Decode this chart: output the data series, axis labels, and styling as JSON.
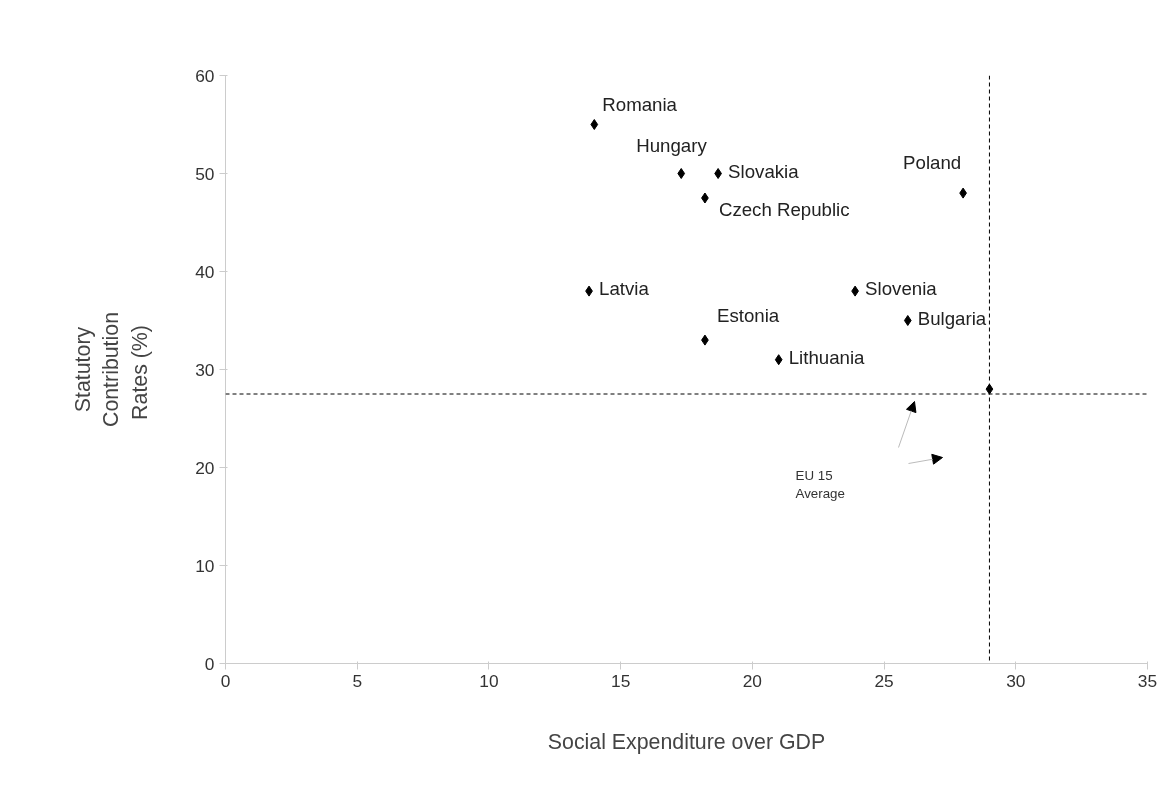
{
  "chart_data": {
    "type": "scatter",
    "xlabel": "Social Expenditure over GDP",
    "ylabel": "Statutory Contribution Rates  (%)",
    "x": [
      14,
      17.3,
      18.7,
      18.2,
      28,
      13.8,
      23.9,
      25.9,
      18.2,
      21,
      29
    ],
    "series": [
      {
        "color": "#000000",
        "values": [
          55,
          50,
          50,
          47.5,
          48,
          38,
          38,
          35,
          33,
          31,
          28
        ]
      }
    ],
    "marker": "diamond",
    "grid": false,
    "xlim": [
      0,
      35
    ],
    "xticks": [
      0,
      5,
      10,
      15,
      20,
      25,
      30,
      35
    ],
    "ylim": [
      0,
      60
    ],
    "yticks": [
      0,
      10,
      20,
      30,
      40,
      50,
      60
    ],
    "ref_lines": [
      {
        "axis": "x",
        "value": 29,
        "line_style": "dashed",
        "color": "#000000"
      },
      {
        "axis": "y",
        "value": 27.5,
        "line_style": "dashed",
        "color": "#000000"
      }
    ],
    "annotations": [
      {
        "text": "Romania",
        "x": 14,
        "y": 55
      },
      {
        "text": "Hungary",
        "x": 17.3,
        "y": 50
      },
      {
        "text": "Slovakia",
        "x": 18.7,
        "y": 50
      },
      {
        "text": "Czech Republic",
        "x": 18.2,
        "y": 47.5
      },
      {
        "text": "Poland",
        "x": 28,
        "y": 48
      },
      {
        "text": "Latvia",
        "x": 13.8,
        "y": 38
      },
      {
        "text": "Slovenia",
        "x": 23.9,
        "y": 38
      },
      {
        "text": "Bulgaria",
        "x": 25.9,
        "y": 35
      },
      {
        "text": "Estonia",
        "x": 18.2,
        "y": 33
      },
      {
        "text": "Lithuania",
        "x": 21,
        "y": 31
      },
      "EU 15 Average"
    ]
  }
}
